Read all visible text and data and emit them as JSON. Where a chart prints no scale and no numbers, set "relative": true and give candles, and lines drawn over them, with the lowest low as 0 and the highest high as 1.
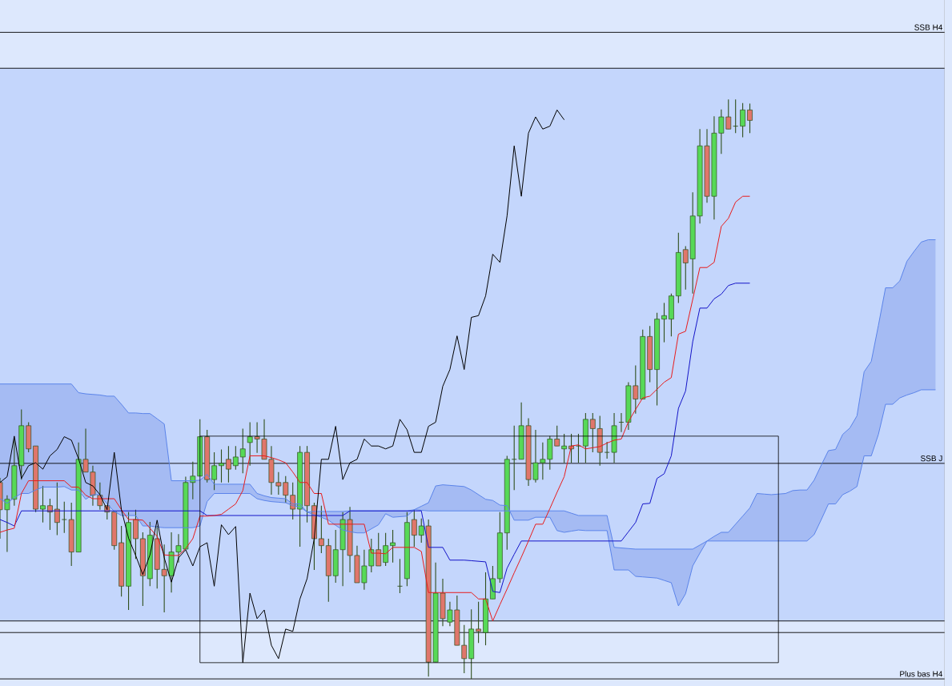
{
  "chart_data": {
    "type": "candlestick",
    "relative": true,
    "categories": [
      null,
      null,
      null,
      null,
      null,
      null,
      null,
      null,
      null,
      null,
      null,
      null,
      null,
      null,
      null,
      null,
      null,
      null,
      null,
      null,
      null,
      null,
      null,
      null,
      null,
      null,
      null,
      null,
      null,
      null,
      null,
      null,
      null,
      null,
      null,
      null,
      null,
      null,
      null,
      null,
      null,
      null,
      null,
      null,
      null,
      null,
      null,
      null,
      null,
      null,
      null,
      null,
      null,
      null,
      null,
      null,
      null,
      null,
      null,
      null,
      null,
      null,
      null,
      null,
      null,
      null,
      null,
      null,
      null,
      null,
      null,
      null,
      null,
      null,
      null,
      null,
      null,
      null,
      null,
      null,
      null,
      null,
      null,
      null,
      null,
      null,
      null,
      null,
      null,
      null,
      null,
      null,
      null,
      null,
      null,
      null,
      null,
      null,
      null,
      null,
      null,
      null,
      null,
      null,
      null,
      null,
      null,
      null,
      null,
      null,
      null,
      null,
      null,
      null,
      null,
      null,
      null,
      null,
      null,
      null,
      null,
      null,
      null,
      null,
      null,
      null,
      null,
      null,
      null,
      null,
      null,
      null
    ],
    "ohlc": [
      [
        0.339,
        0.347,
        0.242,
        0.292
      ],
      [
        0.292,
        0.317,
        0.219,
        0.31
      ],
      [
        0.31,
        0.415,
        0.299,
        0.368
      ],
      [
        0.368,
        0.465,
        0.344,
        0.437
      ],
      [
        0.437,
        0.443,
        0.391,
        0.397
      ],
      [
        0.402,
        0.402,
        0.288,
        0.293
      ],
      [
        0.293,
        0.333,
        0.27,
        0.299
      ],
      [
        0.299,
        0.311,
        0.257,
        0.288
      ],
      [
        0.293,
        0.339,
        0.248,
        0.27
      ],
      [
        0.275,
        0.306,
        0.252,
        0.275
      ],
      [
        0.275,
        0.304,
        0.195,
        0.219
      ],
      [
        0.219,
        0.408,
        0.219,
        0.379
      ],
      [
        0.379,
        0.432,
        0.357,
        0.357
      ],
      [
        0.357,
        0.368,
        0.299,
        0.317
      ],
      [
        0.317,
        0.339,
        0.292,
        0.299
      ],
      [
        0.299,
        0.299,
        0.275,
        0.288
      ],
      [
        0.288,
        0.288,
        0.223,
        0.23
      ],
      [
        0.235,
        0.264,
        0.142,
        0.16
      ],
      [
        0.16,
        0.288,
        0.119,
        0.27
      ],
      [
        0.275,
        0.292,
        0.207,
        0.242
      ],
      [
        0.242,
        0.253,
        0.126,
        0.178
      ],
      [
        0.173,
        0.271,
        0.16,
        0.248
      ],
      [
        0.242,
        0.264,
        0.156,
        0.189
      ],
      [
        0.189,
        0.232,
        0.115,
        0.178
      ],
      [
        0.178,
        0.253,
        0.149,
        0.219
      ],
      [
        0.219,
        0.25,
        0.201,
        0.23
      ],
      [
        0.224,
        0.349,
        0.224,
        0.339
      ],
      [
        0.339,
        0.375,
        0.31,
        0.35
      ],
      [
        0.35,
        0.448,
        0.35,
        0.418
      ],
      [
        0.418,
        0.43,
        0.339,
        0.344
      ],
      [
        0.344,
        0.391,
        0.326,
        0.368
      ],
      [
        0.368,
        0.396,
        0.339,
        0.372
      ],
      [
        0.379,
        0.402,
        0.339,
        0.362
      ],
      [
        0.368,
        0.402,
        0.361,
        0.383
      ],
      [
        0.383,
        0.432,
        0.355,
        0.397
      ],
      [
        0.408,
        0.443,
        0.368,
        0.418
      ],
      [
        0.418,
        0.443,
        0.39,
        0.414
      ],
      [
        0.414,
        0.448,
        0.379,
        0.379
      ],
      [
        0.379,
        0.402,
        0.318,
        0.339
      ],
      [
        0.339,
        0.357,
        0.318,
        0.333
      ],
      [
        0.339,
        0.35,
        0.304,
        0.317
      ],
      [
        0.317,
        0.339,
        0.275,
        0.293
      ],
      [
        0.293,
        0.402,
        0.228,
        0.391
      ],
      [
        0.391,
        0.402,
        0.27,
        0.299
      ],
      [
        0.299,
        0.304,
        0.188,
        0.242
      ],
      [
        0.242,
        0.299,
        0.217,
        0.23
      ],
      [
        0.23,
        0.242,
        0.133,
        0.178
      ],
      [
        0.178,
        0.257,
        0.166,
        0.223
      ],
      [
        0.223,
        0.288,
        0.16,
        0.275
      ],
      [
        0.275,
        0.297,
        0.184,
        0.213
      ],
      [
        0.213,
        0.23,
        0.166,
        0.166
      ],
      [
        0.166,
        0.223,
        0.154,
        0.195
      ],
      [
        0.195,
        0.242,
        0.184,
        0.223
      ],
      [
        0.223,
        0.252,
        0.195,
        0.195
      ],
      [
        0.201,
        0.252,
        0.195,
        0.23
      ],
      [
        0.23,
        0.257,
        0.201,
        0.235
      ],
      [
        0.16,
        0.207,
        0.148,
        0.16
      ],
      [
        0.173,
        0.288,
        0.16,
        0.27
      ],
      [
        0.275,
        0.292,
        0.228,
        0.248
      ],
      [
        0.248,
        0.277,
        0.235,
        0.264
      ],
      [
        0.264,
        0.275,
        0.004,
        0.029
      ],
      [
        0.029,
        0.201,
        0.029,
        0.148
      ],
      [
        0.148,
        0.173,
        0.091,
        0.104
      ],
      [
        0.098,
        0.133,
        0.091,
        0.119
      ],
      [
        0.119,
        0.144,
        0.058,
        0.058
      ],
      [
        0.058,
        0.093,
        0.01,
        0.035
      ],
      [
        0.035,
        0.12,
        0,
        0.086
      ],
      [
        0.086,
        0.133,
        0.062,
        0.082
      ],
      [
        0.08,
        0.184,
        0.058,
        0.138
      ],
      [
        0.138,
        0.195,
        0.138,
        0.173
      ],
      [
        0.173,
        0.288,
        0.166,
        0.252
      ],
      [
        0.252,
        0.385,
        0.223,
        0.379
      ],
      [
        0.379,
        0.437,
        0.326,
        0.379
      ],
      [
        0.379,
        0.477,
        0.379,
        0.437
      ],
      [
        0.437,
        0.45,
        0.333,
        0.344
      ],
      [
        0.344,
        0.43,
        0.339,
        0.373
      ],
      [
        0.373,
        0.408,
        0.344,
        0.379
      ],
      [
        0.379,
        0.419,
        0.361,
        0.414
      ],
      [
        0.414,
        0.437,
        0.402,
        0.402
      ],
      [
        0.397,
        0.423,
        0.373,
        0.402
      ],
      [
        0.402,
        0.423,
        0.373,
        0.397
      ],
      [
        0.402,
        0.423,
        0.373,
        0.402
      ],
      [
        0.402,
        0.459,
        0.373,
        0.448
      ],
      [
        0.448,
        0.459,
        0.391,
        0.432
      ],
      [
        0.432,
        0.454,
        0.368,
        0.391
      ],
      [
        0.391,
        0.409,
        0.38,
        0.391
      ],
      [
        0.391,
        0.459,
        0.373,
        0.437
      ],
      [
        0.443,
        0.459,
        0.426,
        0.443
      ],
      [
        0.443,
        0.512,
        0.43,
        0.506
      ],
      [
        0.506,
        0.541,
        0.458,
        0.483
      ],
      [
        0.483,
        0.603,
        0.483,
        0.591
      ],
      [
        0.591,
        0.609,
        0.512,
        0.534
      ],
      [
        0.534,
        0.632,
        0.472,
        0.621
      ],
      [
        0.621,
        0.649,
        0.581,
        0.627
      ],
      [
        0.621,
        0.665,
        0.591,
        0.661
      ],
      [
        0.661,
        0.77,
        0.649,
        0.736
      ],
      [
        0.741,
        0.747,
        0.672,
        0.718
      ],
      [
        0.725,
        0.84,
        0.665,
        0.799
      ],
      [
        0.799,
        0.949,
        0.786,
        0.92
      ],
      [
        0.92,
        0.949,
        0.822,
        0.833
      ],
      [
        0.833,
        0.971,
        0.793,
        0.942
      ],
      [
        0.942,
        0.983,
        0.906,
        0.97
      ],
      [
        0.97,
        1,
        0.949,
        0.949
      ],
      [
        0.954,
        1,
        0.942,
        0.954
      ],
      [
        0.954,
        0.994,
        0.935,
        0.982
      ],
      [
        0.982,
        0.993,
        0.942,
        0.964
      ],
      null,
      null,
      null,
      null,
      null,
      null,
      null,
      null,
      null,
      null,
      null,
      null,
      null,
      null,
      null,
      null,
      null,
      null,
      null,
      null,
      null,
      null,
      null,
      null,
      null,
      null
    ],
    "colors": [
      "#e0766b",
      "#57d957",
      "#57d957",
      "#57d957",
      "#e0766b",
      "#e0766b",
      "#57d957",
      "#e0766b",
      "#e0766b",
      "#2f4f1c",
      "#e0766b",
      "#57d957",
      "#e0766b",
      "#e0766b",
      "#e0766b",
      "#e0766b",
      "#e0766b",
      "#e0766b",
      "#57d957",
      "#e0766b",
      "#e0766b",
      "#57d957",
      "#e0766b",
      "#e0766b",
      "#57d957",
      "#57d957",
      "#57d957",
      "#57d957",
      "#57d957",
      "#e0766b",
      "#57d957",
      "#57d957",
      "#e0766b",
      "#57d957",
      "#57d957",
      "#57d957",
      "#e0766b",
      "#e0766b",
      "#e0766b",
      "#e0766b",
      "#e0766b",
      "#e0766b",
      "#57d957",
      "#e0766b",
      "#e0766b",
      "#e0766b",
      "#e0766b",
      "#57d957",
      "#57d957",
      "#e0766b",
      "#e0766b",
      "#57d957",
      "#57d957",
      "#e0766b",
      "#57d957",
      "#57d957",
      "#2f4f1c",
      "#57d957",
      "#e0766b",
      "#57d957",
      "#e0766b",
      "#57d957",
      "#e0766b",
      "#57d957",
      "#e0766b",
      "#e0766b",
      "#57d957",
      "#e0766b",
      "#57d957",
      "#57d957",
      "#57d957",
      "#57d957",
      "#2f4f1c",
      "#57d957",
      "#e0766b",
      "#57d957",
      "#57d957",
      "#57d957",
      "#e0766b",
      "#57d957",
      "#e0766b",
      "#2f4f1c",
      "#57d957",
      "#e0766b",
      "#e0766b",
      "#2f4f1c",
      "#57d957",
      "#2f4f1c",
      "#57d957",
      "#e0766b",
      "#57d957",
      "#e0766b",
      "#57d957",
      "#57d957",
      "#57d957",
      "#57d957",
      "#e0766b",
      "#57d957",
      "#57d957",
      "#e0766b",
      "#57d957",
      "#57d957",
      "#e0766b",
      "#2f4f1c",
      "#57d957",
      "#e0766b",
      null,
      null,
      null,
      null,
      null,
      null,
      null,
      null,
      null,
      null,
      null,
      null,
      null,
      null,
      null,
      null,
      null,
      null,
      null,
      null,
      null,
      null,
      null,
      null,
      null,
      null
    ],
    "series": [
      {
        "type": "line",
        "color": "#5b84ea",
        "values": [
          0.509,
          0.509,
          0.509,
          0.509,
          0.509,
          0.509,
          0.509,
          0.509,
          0.509,
          0.509,
          0.509,
          0.494,
          0.492,
          0.491,
          0.49,
          0.488,
          0.488,
          0.474,
          0.459,
          0.459,
          0.458,
          0.458,
          0.449,
          0.44,
          0.342,
          0.342,
          0.342,
          0.342,
          0.343,
          0.353,
          0.336,
          0.336,
          0.336,
          0.336,
          0.336,
          0.336,
          0.32,
          0.316,
          0.313,
          0.312,
          0.311,
          0.302,
          0.302,
          0.288,
          0.289,
          0.289,
          0.289,
          0.289,
          0.289,
          0.29,
          0.29,
          0.29,
          0.29,
          0.29,
          0.29,
          0.29,
          0.29,
          0.29,
          0.292,
          0.298,
          0.304,
          0.333,
          0.335,
          0.334,
          0.333,
          0.332,
          0.326,
          0.318,
          0.31,
          0.308,
          0.3,
          0.299,
          0.274,
          0.274,
          0.274,
          0.279,
          0.279,
          0.279,
          0.256,
          0.253,
          0.255,
          0.257,
          0.256,
          0.256,
          0.256,
          0.256,
          0.188,
          0.188,
          0.188,
          0.177,
          0.176,
          0.175,
          0.174,
          0.17,
          0.166,
          0.126,
          0.147,
          0.195,
          0.217,
          0.238,
          0.246,
          0.253,
          0.253,
          0.267,
          0.281,
          0.295,
          0.32,
          0.319,
          0.318,
          0.319,
          0.32,
          0.325,
          0.326,
          0.326,
          0.343,
          0.369,
          0.394,
          0.396,
          0.422,
          0.433,
          0.454,
          0.53,
          0.548,
          0.61,
          0.675,
          0.675,
          0.687,
          0.721,
          0.738,
          0.754,
          0.758,
          0.758
        ],
        "lower": [
          0.311,
          0.303,
          0.313,
          0.32,
          0.32,
          0.326,
          0.331,
          0.331,
          0.331,
          0.332,
          0.326,
          0.326,
          0.31,
          0.318,
          0.318,
          0.302,
          0.289,
          0.282,
          0.282,
          0.282,
          0.264,
          0.264,
          0.262,
          0.261,
          0.261,
          0.261,
          0.261,
          0.261,
          0.264,
          0.306,
          0.32,
          0.32,
          0.32,
          0.32,
          0.32,
          0.32,
          0.311,
          0.308,
          0.306,
          0.305,
          0.304,
          0.299,
          0.297,
          0.288,
          0.283,
          0.279,
          0.274,
          0.265,
          0.257,
          0.254,
          0.252,
          0.252,
          0.259,
          0.266,
          0.285,
          0.279,
          0.28,
          0.281,
          0.292,
          0.291,
          0.29,
          0.29,
          0.29,
          0.29,
          0.29,
          0.29,
          0.29,
          0.29,
          0.29,
          0.29,
          0.29,
          0.29,
          0.29,
          0.29,
          0.29,
          0.29,
          0.29,
          0.29,
          0.29,
          0.29,
          0.286,
          0.282,
          0.282,
          0.282,
          0.282,
          0.282,
          0.227,
          0.226,
          0.225,
          0.224,
          0.224,
          0.224,
          0.224,
          0.224,
          0.224,
          0.224,
          0.224,
          0.224,
          0.231,
          0.238,
          0.238,
          0.238,
          0.238,
          0.238,
          0.238,
          0.238,
          0.238,
          0.238,
          0.238,
          0.238,
          0.238,
          0.238,
          0.238,
          0.238,
          0.249,
          0.275,
          0.302,
          0.302,
          0.318,
          0.324,
          0.332,
          0.385,
          0.385,
          0.422,
          0.474,
          0.474,
          0.485,
          0.49,
          0.494,
          0.499,
          0.499,
          0.499
        ],
        "upper": [
          0.509,
          0.509,
          0.509,
          0.509,
          0.509,
          0.509,
          0.509,
          0.509,
          0.509,
          0.509,
          0.509,
          0.494,
          0.492,
          0.491,
          0.49,
          0.488,
          0.488,
          0.474,
          0.459,
          0.459,
          0.458,
          0.458,
          0.449,
          0.44,
          0.342,
          0.342,
          0.342,
          0.342,
          0.343,
          0.353,
          0.336,
          0.336,
          0.336,
          0.336,
          0.336,
          0.336,
          0.32,
          0.316,
          0.313,
          0.312,
          0.311,
          0.302,
          0.302,
          0.288,
          0.289,
          0.289,
          0.289,
          0.289,
          0.289,
          0.29,
          0.29,
          0.29,
          0.29,
          0.29,
          0.29,
          0.29,
          0.29,
          0.29,
          0.292,
          0.298,
          0.304,
          0.333,
          0.335,
          0.334,
          0.333,
          0.332,
          0.326,
          0.318,
          0.31,
          0.308,
          0.3,
          0.299,
          0.274,
          0.274,
          0.274,
          0.279,
          0.279,
          0.279,
          0.256,
          0.253,
          0.255,
          0.257,
          0.256,
          0.256,
          0.256,
          0.256,
          0.188,
          0.188,
          0.188,
          0.177,
          0.176,
          0.175,
          0.174,
          0.17,
          0.166,
          0.126,
          0.147,
          0.195,
          0.217,
          0.238,
          0.246,
          0.253,
          0.253,
          0.267,
          0.281,
          0.295,
          0.32,
          0.319,
          0.318,
          0.319,
          0.32,
          0.325,
          0.326,
          0.326,
          0.343,
          0.369,
          0.394,
          0.396,
          0.422,
          0.433,
          0.454,
          0.53,
          0.548,
          0.61,
          0.675,
          0.675,
          0.687,
          0.721,
          0.738,
          0.754,
          0.758,
          0.758
        ]
      },
      {
        "type": "line",
        "color": "#5b84ea",
        "values": [
          0.311,
          0.303,
          0.313,
          0.32,
          0.32,
          0.326,
          0.331,
          0.331,
          0.331,
          0.332,
          0.326,
          0.326,
          0.31,
          0.318,
          0.318,
          0.302,
          0.289,
          0.282,
          0.282,
          0.282,
          0.264,
          0.264,
          0.262,
          0.261,
          0.261,
          0.261,
          0.261,
          0.261,
          0.264,
          0.306,
          0.32,
          0.32,
          0.32,
          0.32,
          0.32,
          0.32,
          0.311,
          0.308,
          0.306,
          0.305,
          0.304,
          0.299,
          0.297,
          0.288,
          0.283,
          0.279,
          0.274,
          0.265,
          0.257,
          0.254,
          0.252,
          0.252,
          0.259,
          0.266,
          0.285,
          0.279,
          0.28,
          0.281,
          0.292,
          0.291,
          0.29,
          0.29,
          0.29,
          0.29,
          0.29,
          0.29,
          0.29,
          0.29,
          0.29,
          0.29,
          0.29,
          0.29,
          0.29,
          0.29,
          0.29,
          0.29,
          0.29,
          0.29,
          0.29,
          0.29,
          0.286,
          0.282,
          0.282,
          0.282,
          0.282,
          0.282,
          0.227,
          0.226,
          0.225,
          0.224,
          0.224,
          0.224,
          0.224,
          0.224,
          0.224,
          0.224,
          0.224,
          0.224,
          0.231,
          0.238,
          0.238,
          0.238,
          0.238,
          0.238,
          0.238,
          0.238,
          0.238,
          0.238,
          0.238,
          0.238,
          0.238,
          0.238,
          0.238,
          0.238,
          0.249,
          0.275,
          0.302,
          0.302,
          0.318,
          0.324,
          0.332,
          0.385,
          0.385,
          0.422,
          0.474,
          0.474,
          0.485,
          0.49,
          0.494,
          0.499,
          0.499,
          0.499
        ]
      },
      {
        "type": "line",
        "color": "#1414c8",
        "values": [
          0.275,
          0.27,
          0.264,
          0.29,
          0.29,
          0.29,
          0.29,
          0.29,
          0.29,
          0.29,
          0.29,
          0.29,
          0.29,
          0.29,
          0.29,
          0.29,
          0.29,
          0.29,
          0.29,
          0.29,
          0.29,
          0.29,
          0.29,
          0.29,
          0.29,
          0.29,
          0.29,
          0.29,
          0.29,
          0.282,
          0.282,
          0.282,
          0.282,
          0.282,
          0.282,
          0.282,
          0.282,
          0.282,
          0.282,
          0.282,
          0.282,
          0.282,
          0.282,
          0.282,
          0.282,
          0.282,
          0.282,
          0.282,
          0.282,
          0.29,
          0.29,
          0.29,
          0.29,
          0.29,
          0.29,
          0.29,
          0.29,
          0.29,
          0.29,
          0.29,
          0.227,
          0.227,
          0.227,
          0.205,
          0.205,
          0.205,
          0.204,
          0.203,
          0.202,
          0.151,
          0.149,
          0.191,
          0.215,
          0.238,
          0.238,
          0.238,
          0.238,
          0.238,
          0.238,
          0.238,
          0.238,
          0.238,
          0.238,
          0.238,
          0.238,
          0.238,
          0.238,
          0.238,
          0.254,
          0.27,
          0.302,
          0.303,
          0.346,
          0.354,
          0.385,
          0.467,
          0.497,
          0.582,
          0.64,
          0.64,
          0.656,
          0.664,
          0.679,
          0.683,
          0.683,
          0.683,
          null,
          null,
          null,
          null,
          null,
          null,
          null,
          null,
          null,
          null,
          null,
          null,
          null,
          null,
          null,
          null,
          null,
          null,
          null,
          null,
          null,
          null,
          null,
          null,
          null,
          null
        ]
      },
      {
        "type": "line",
        "color": "#e81c1c",
        "values": [
          0.253,
          0.257,
          0.26,
          0.32,
          0.342,
          0.342,
          0.342,
          0.342,
          0.342,
          0.342,
          0.331,
          0.331,
          0.317,
          0.311,
          0.311,
          0.311,
          0.311,
          0.292,
          0.275,
          0.275,
          0.274,
          0.26,
          0.246,
          0.214,
          0.213,
          0.213,
          0.225,
          0.242,
          0.281,
          0.281,
          0.282,
          0.284,
          0.293,
          0.302,
          0.325,
          0.385,
          0.385,
          0.385,
          0.382,
          0.378,
          0.373,
          0.357,
          0.339,
          0.339,
          0.32,
          0.32,
          0.267,
          0.267,
          0.267,
          0.267,
          0.267,
          0.267,
          0.217,
          0.217,
          0.216,
          0.227,
          0.227,
          0.227,
          0.227,
          0.22,
          0.149,
          0.149,
          0.149,
          0.149,
          0.149,
          0.149,
          0.149,
          0.138,
          0.138,
          0.1,
          0.128,
          0.155,
          0.183,
          0.21,
          0.238,
          0.267,
          0.267,
          0.294,
          0.322,
          0.349,
          0.402,
          0.404,
          0.397,
          0.399,
          0.401,
          0.407,
          0.412,
          0.414,
          0.444,
          0.465,
          0.485,
          0.488,
          0.5,
          0.512,
          0.52,
          0.595,
          0.6,
          0.655,
          0.71,
          0.71,
          0.719,
          0.781,
          0.795,
          0.823,
          0.833,
          0.833,
          null,
          null,
          null,
          null,
          null,
          null,
          null,
          null,
          null,
          null,
          null,
          null,
          null,
          null,
          null,
          null,
          null,
          null,
          null,
          null,
          null,
          null,
          null,
          null,
          null,
          null
        ]
      },
      {
        "type": "line",
        "color": "#000000",
        "values": [
          0.339,
          0.349,
          0.419,
          0.346,
          0.368,
          0.373,
          0.362,
          0.385,
          0.396,
          0.418,
          0.412,
          0.38,
          0.339,
          0.333,
          0.318,
          0.292,
          0.391,
          0.292,
          0.243,
          0.213,
          0.18,
          0.214,
          0.274,
          0.209,
          0.167,
          0.209,
          0.223,
          0.195,
          0.228,
          0.235,
          0.16,
          0.266,
          0.249,
          0.263,
          0.028,
          0.148,
          0.104,
          0.119,
          0.058,
          0.035,
          0.086,
          0.082,
          0.138,
          0.173,
          0.242,
          0.379,
          0.379,
          0.436,
          0.344,
          0.373,
          0.379,
          0.414,
          0.402,
          0.402,
          0.397,
          0.402,
          0.448,
          0.43,
          0.391,
          0.391,
          0.436,
          0.443,
          0.505,
          0.534,
          0.592,
          0.534,
          0.624,
          0.627,
          0.661,
          0.733,
          0.719,
          0.799,
          0.92,
          0.833,
          0.942,
          0.97,
          0.949,
          0.954,
          0.982,
          0.965,
          null,
          null,
          null,
          null,
          null,
          null,
          null,
          null,
          null,
          null,
          null,
          null,
          null,
          null,
          null,
          null,
          null,
          null,
          null,
          null,
          null,
          null,
          null,
          null,
          null,
          null,
          null,
          null,
          null,
          null,
          null,
          null,
          null,
          null,
          null,
          null,
          null,
          null,
          null,
          null,
          null,
          null,
          null,
          null,
          null,
          null,
          null,
          null,
          null,
          null,
          null,
          null
        ]
      }
    ],
    "ref_lines": [
      {
        "axis": "y",
        "value": 1.116,
        "label": "SSB H4"
      },
      {
        "axis": "y",
        "value": 1.054
      },
      {
        "axis": "y",
        "value": 0.372,
        "label": "SSB J"
      },
      {
        "axis": "y",
        "value": 0.1
      },
      {
        "axis": "y",
        "value": 0.08
      },
      {
        "axis": "y",
        "value": 0,
        "label": "Plus bas H4"
      }
    ],
    "bands": [
      {
        "axis": "y",
        "from": 0.1,
        "to": 1.054,
        "color": "#c4d6fc"
      }
    ]
  }
}
